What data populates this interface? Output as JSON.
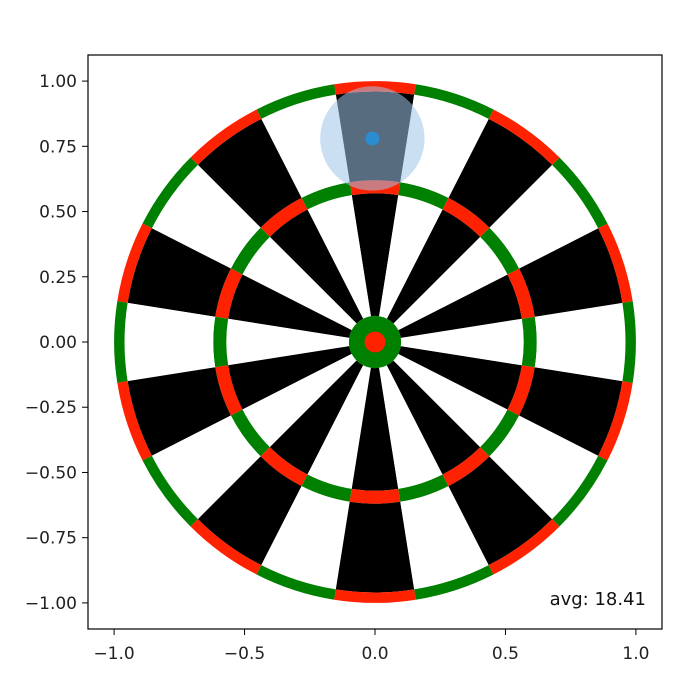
{
  "chart_data": {
    "type": "scatter",
    "title": "",
    "xlabel": "",
    "ylabel": "",
    "xlim": [
      -1.1,
      1.1
    ],
    "ylim": [
      -1.1,
      1.1
    ],
    "x_ticks": [
      -1.0,
      -0.5,
      0.0,
      0.5,
      1.0
    ],
    "x_tick_labels": [
      "−1.0",
      "−0.5",
      "0.0",
      "0.5",
      "1.0"
    ],
    "y_ticks": [
      1.0,
      0.75,
      0.5,
      0.25,
      0.0,
      -0.25,
      -0.5,
      -0.75,
      -1.0
    ],
    "y_tick_labels": [
      "1.00",
      "0.75",
      "0.50",
      "0.25",
      "0.00",
      "−0.25",
      "−0.50",
      "−0.75",
      "−1.00"
    ],
    "grid": false,
    "dartboard": {
      "segments": 20,
      "bull_radius": 0.04,
      "bull_ring_radius": 0.1,
      "treble_inner": 0.57,
      "treble_outer": 0.62,
      "double_inner": 0.96,
      "double_outer": 1.0
    },
    "points": [
      {
        "x": -0.01,
        "y": 0.78
      }
    ],
    "spread_radius": 0.2,
    "annotation": "avg: 18.41"
  },
  "colors": {
    "dark_segment": "#000000",
    "light_segment": "#ffffff",
    "red_ring": "#ff2200",
    "green_ring": "#008000",
    "point": "#2b8cd0",
    "spread": "#9ec5e8"
  }
}
